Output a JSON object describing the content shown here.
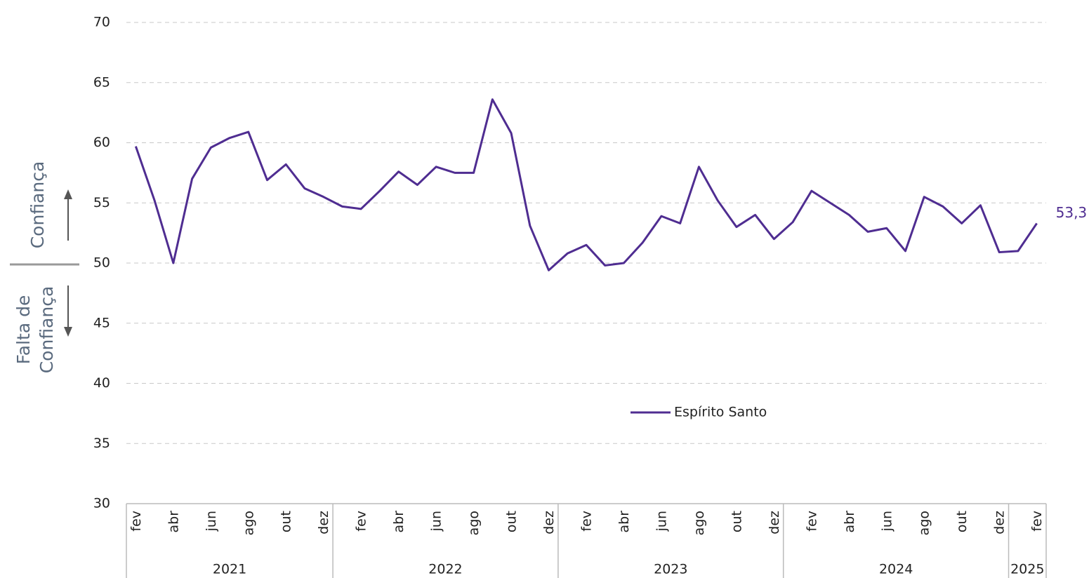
{
  "chart_data": {
    "type": "line",
    "annotations": {
      "positive": "Confiança",
      "negative": [
        "Falta de",
        "Confiança"
      ]
    },
    "categories": [
      "fev",
      null,
      "abr",
      null,
      "jun",
      null,
      "ago",
      null,
      "out",
      null,
      "dez",
      null,
      "fev",
      null,
      "abr",
      null,
      "jun",
      null,
      "ago",
      null,
      "out",
      null,
      "dez",
      null,
      "fev",
      null,
      "abr",
      null,
      "jun",
      null,
      "ago",
      null,
      "out",
      null,
      "dez",
      null,
      "fev",
      null,
      "abr",
      null,
      "jun",
      null,
      "ago",
      null,
      "out",
      null,
      "dez",
      null,
      "fev"
    ],
    "years": [
      {
        "label": "2021",
        "months": 11
      },
      {
        "label": "2022",
        "months": 12
      },
      {
        "label": "2023",
        "months": 12
      },
      {
        "label": "2024",
        "months": 12
      },
      {
        "label": "2025",
        "months": 2
      }
    ],
    "series": [
      {
        "name": "Espírito Santo",
        "color": "#4f2d91",
        "values": [
          59.7,
          55.2,
          50.0,
          57.0,
          59.6,
          60.4,
          60.9,
          56.9,
          58.2,
          56.2,
          55.5,
          54.7,
          54.5,
          56.0,
          57.6,
          56.5,
          58.0,
          57.5,
          57.5,
          63.6,
          60.8,
          53.1,
          49.4,
          50.8,
          51.5,
          49.8,
          50.0,
          51.7,
          53.9,
          53.3,
          58.0,
          55.2,
          53.0,
          54.0,
          52.0,
          53.4,
          56.0,
          55.0,
          54.0,
          52.6,
          52.9,
          51.0,
          55.5,
          54.7,
          53.3,
          54.8,
          50.9,
          51.0,
          53.3
        ],
        "value_labels": {
          "48": "53,3"
        }
      }
    ],
    "ylim": [
      30,
      70
    ],
    "yticks": [
      30,
      35,
      40,
      45,
      50,
      55,
      60,
      65,
      70
    ],
    "grid": true,
    "legend": "bottom-center"
  }
}
